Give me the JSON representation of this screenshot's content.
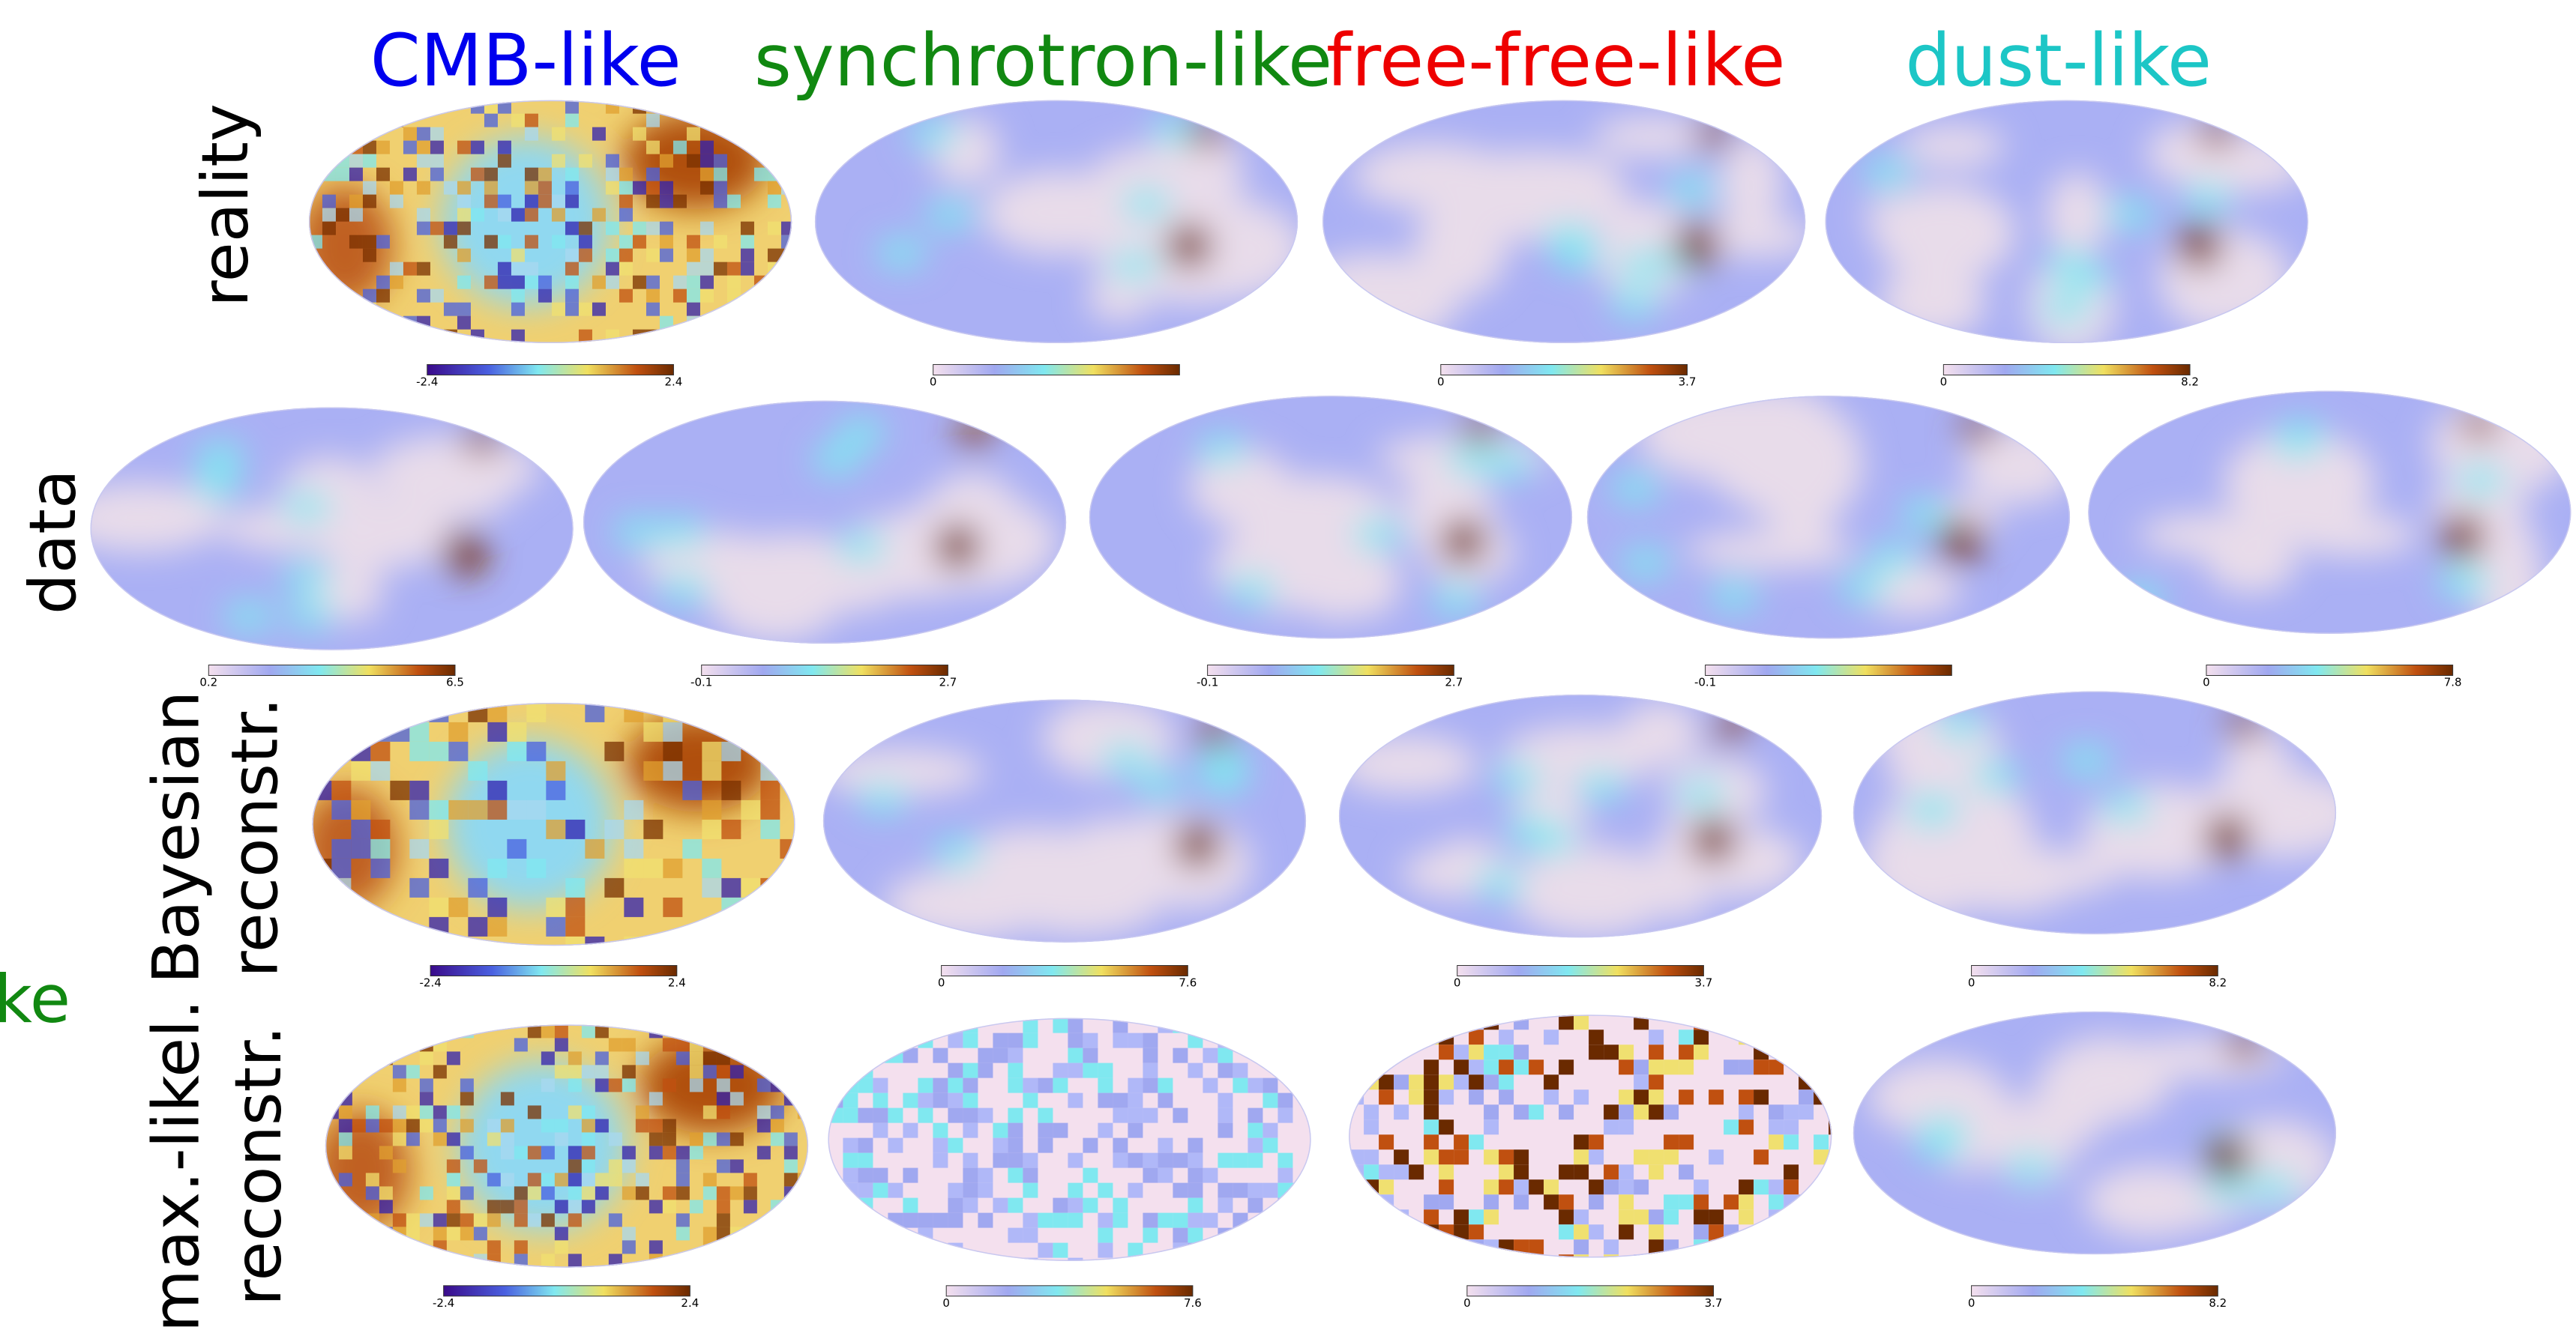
{
  "headers": [
    "CMB-like",
    "synchrotron-like",
    "free-free-like",
    "dust-like"
  ],
  "fragment": "ke",
  "rows": [
    {
      "label": [
        "reality"
      ],
      "maps": [
        {
          "min": "-2.4",
          "max": "2.4"
        },
        {
          "min": "0"
        },
        {
          "min": "0",
          "max": "3.7"
        },
        {
          "min": "0",
          "max": "8.2"
        }
      ]
    },
    {
      "label": [
        "data"
      ],
      "maps": [
        {
          "min": "0.2",
          "max": "6.5"
        },
        {
          "min": "-0.1",
          "max": "2.7"
        },
        {
          "min": "-0.1",
          "max": "2.7"
        },
        {
          "min": "-0.1"
        },
        {
          "min": "0",
          "max": "7.8"
        }
      ]
    },
    {
      "label": [
        "Bayesian",
        "reconstr."
      ],
      "maps": [
        {
          "min": "-2.4",
          "max": "2.4"
        },
        {
          "min": "0",
          "max": "7.6"
        },
        {
          "min": "0",
          "max": "3.7"
        },
        {
          "min": "0",
          "max": "8.2"
        }
      ]
    },
    {
      "label": [
        "max.-likel.",
        "reconstr."
      ],
      "maps": [
        {
          "min": "-2.4",
          "max": "2.4"
        },
        {
          "min": "0",
          "max": "7.6"
        },
        {
          "min": "0",
          "max": "3.7"
        },
        {
          "min": "0",
          "max": "8.2"
        }
      ]
    }
  ]
}
